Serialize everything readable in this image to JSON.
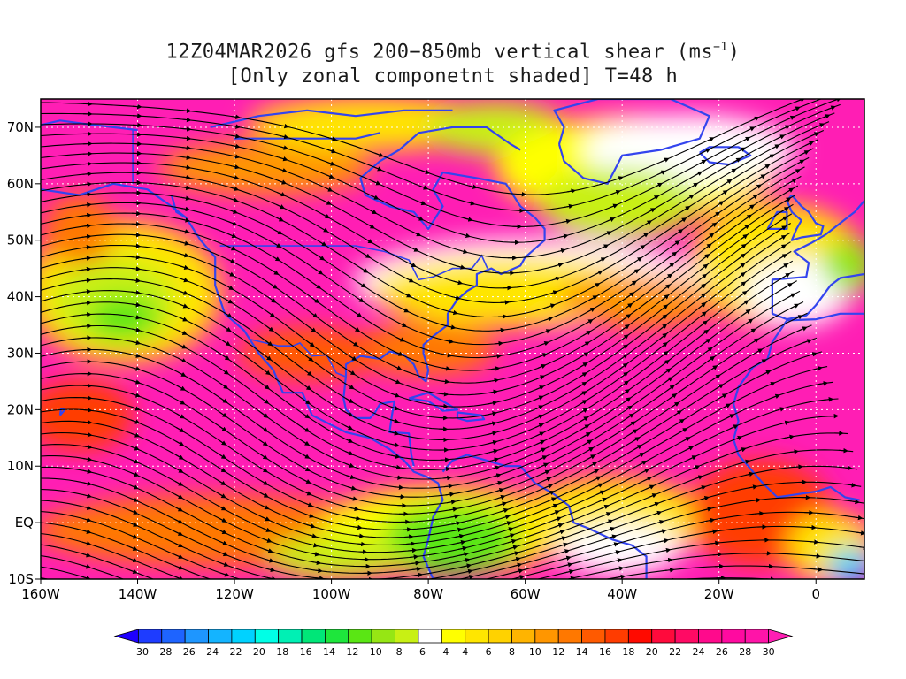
{
  "title": {
    "line1_prefix": "12Z04MAR2026 gfs 200−850mb vertical shear (ms",
    "line1_sup": "−1",
    "line1_suffix": ")",
    "line2": "[Only zonal componetnt shaded] T=48 h"
  },
  "map": {
    "lon_range": [
      -160,
      10
    ],
    "lat_range": [
      -10,
      75
    ],
    "lat_ticks": [
      {
        "value": 70,
        "label": "70N"
      },
      {
        "value": 60,
        "label": "60N"
      },
      {
        "value": 50,
        "label": "50N"
      },
      {
        "value": 40,
        "label": "40N"
      },
      {
        "value": 30,
        "label": "30N"
      },
      {
        "value": 20,
        "label": "20N"
      },
      {
        "value": 10,
        "label": "10N"
      },
      {
        "value": 0,
        "label": "EQ"
      },
      {
        "value": -10,
        "label": "10S"
      }
    ],
    "lon_ticks": [
      {
        "value": -160,
        "label": "160W"
      },
      {
        "value": -140,
        "label": "140W"
      },
      {
        "value": -120,
        "label": "120W"
      },
      {
        "value": -100,
        "label": "100W"
      },
      {
        "value": -80,
        "label": "80W"
      },
      {
        "value": -60,
        "label": "60W"
      },
      {
        "value": -40,
        "label": "40W"
      },
      {
        "value": -20,
        "label": "20W"
      },
      {
        "value": 0,
        "label": "0"
      }
    ],
    "coastline_color": "#3344ee",
    "streamline_color": "#000000",
    "contour_color": "#8a00a8"
  },
  "colorbar": {
    "levels": [
      -30,
      -28,
      -26,
      -24,
      -22,
      -20,
      -18,
      -16,
      -14,
      -12,
      -10,
      -8,
      -6,
      -4,
      4,
      6,
      8,
      10,
      12,
      14,
      16,
      18,
      20,
      22,
      24,
      26,
      28,
      30
    ],
    "labels": [
      "−30",
      "−28",
      "−26",
      "−24",
      "−22",
      "−20",
      "−18",
      "−16",
      "−14",
      "−12",
      "−10",
      "−8",
      "−6",
      "−4",
      "4",
      "6",
      "8",
      "10",
      "12",
      "14",
      "16",
      "18",
      "20",
      "22",
      "24",
      "26",
      "28",
      "30"
    ],
    "colors": [
      "#1e00ff",
      "#1e3cff",
      "#1e64ff",
      "#1e96ff",
      "#14b4ff",
      "#00d2ff",
      "#00ffe6",
      "#00f0b4",
      "#00e678",
      "#1ee63c",
      "#5ae614",
      "#96e614",
      "#c8f014",
      "#ffffff",
      "#ffff00",
      "#ffe600",
      "#ffd200",
      "#ffb400",
      "#ff9600",
      "#ff7800",
      "#ff5a00",
      "#ff3c00",
      "#ff0a00",
      "#ff0a3c",
      "#ff0a64",
      "#ff0a8c",
      "#ff0aa0",
      "#ff14a8",
      "#ff1eb4"
    ]
  }
}
